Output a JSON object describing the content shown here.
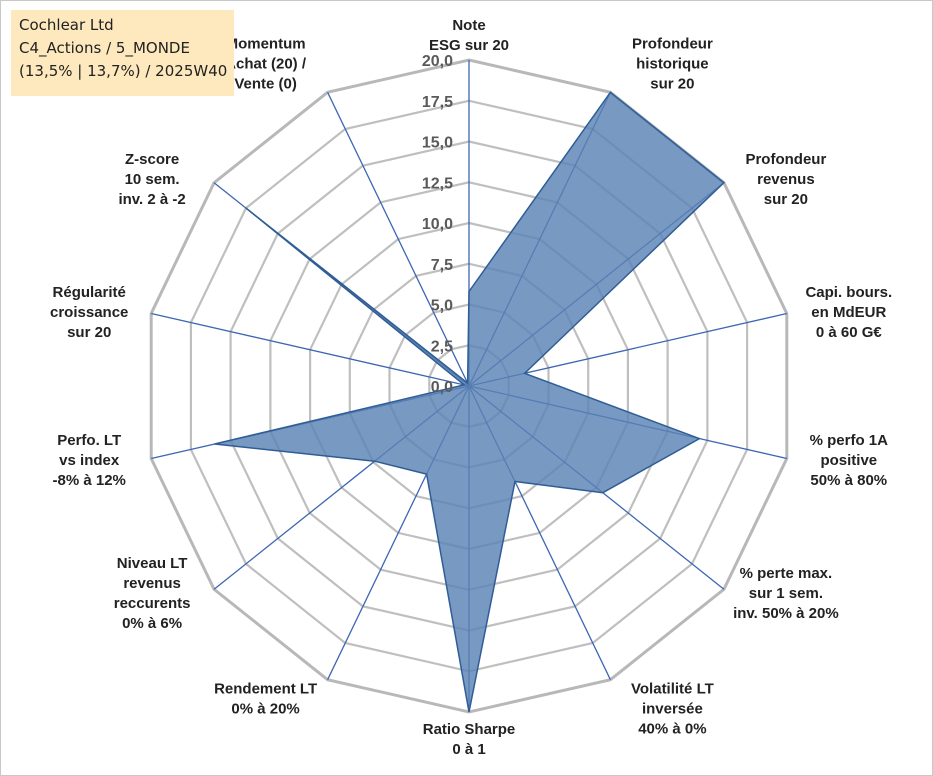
{
  "info": {
    "company": "Cochlear Ltd",
    "category": "C4_Actions / 5_MONDE",
    "period": "(13,5% | 13,7%) / 2025W40"
  },
  "chart_data": {
    "type": "radar",
    "title": "",
    "rmin": 0,
    "rmax": 20,
    "ticks": [
      "0,0",
      "2,5",
      "5,0",
      "7,5",
      "10,0",
      "12,5",
      "15,0",
      "17,5",
      "20,0"
    ],
    "grid": true,
    "legend": "none",
    "axes": [
      {
        "label": [
          "Note",
          "ESG sur 20"
        ],
        "value": 5.8
      },
      {
        "label": [
          "Profondeur",
          "historique",
          "sur 20"
        ],
        "value": 20
      },
      {
        "label": [
          "Profondeur",
          "revenus",
          "sur 20"
        ],
        "value": 20
      },
      {
        "label": [
          "Capi. bours.",
          "en MdEUR",
          "0 à 60 G€"
        ],
        "value": 3.5
      },
      {
        "label": [
          "% perfo 1A",
          "positive",
          "50% à 80%"
        ],
        "value": 14.5
      },
      {
        "label": [
          "% perte max.",
          "sur 1 sem.",
          "inv. 50% à 20%"
        ],
        "value": 10.5
      },
      {
        "label": [
          "Volatilité LT",
          "inversée",
          "40% à 0%"
        ],
        "value": 6.5
      },
      {
        "label": [
          "Ratio Sharpe",
          "0 à 1"
        ],
        "value": 20
      },
      {
        "label": [
          "Rendement LT",
          "0% à 20%"
        ],
        "value": 6
      },
      {
        "label": [
          "Niveau LT",
          "revenus",
          "reccurents",
          "0% à 6%"
        ],
        "value": 7.4
      },
      {
        "label": [
          "Perfo. LT",
          "vs index",
          "-8% à 12%"
        ],
        "value": 16
      },
      {
        "label": [
          "Régularité",
          "croissance",
          "sur 20"
        ],
        "value": 0.3
      },
      {
        "label": [
          "Z-score",
          "10 sem.",
          "inv. 2 à -2"
        ],
        "value": 17.5
      },
      {
        "label": [
          "Momentum",
          "Achat (20) /",
          "Vente (0)"
        ],
        "value": 0.2
      }
    ],
    "colors": {
      "fill": "#5a82b4",
      "stroke": "#2f5d95",
      "spoke": "#3d66b3",
      "grid": "#bfbfbf",
      "grid_outer": "#b8b8b8",
      "text": "#222222"
    }
  }
}
